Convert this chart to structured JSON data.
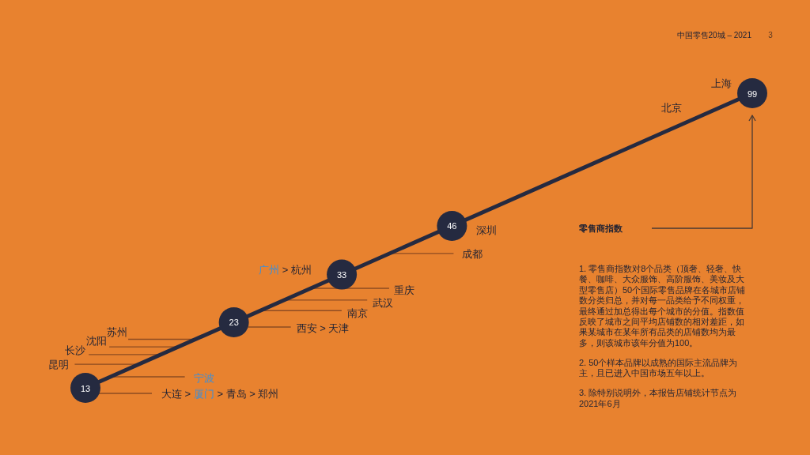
{
  "chart_data": {
    "type": "other",
    "title": "中国零售20城 – 2021",
    "subtitle": "零售商指数",
    "categories": [
      "大连 > 厦门 > 青岛 > 郑州",
      "宁波",
      "昆明",
      "长沙",
      "沈阳",
      "苏州",
      "西安 > 天津",
      "南京",
      "武汉",
      "重庆",
      "广州 > 杭州",
      "成都",
      "深圳",
      "北京",
      "上海"
    ],
    "values": [
      13,
      null,
      null,
      null,
      null,
      null,
      23,
      null,
      null,
      null,
      33,
      null,
      46,
      null,
      99
    ],
    "color": "#252a40",
    "data_labels": true,
    "annotations": [
      "1. 零售商指数对8个品类（顶奢、轻奢、快餐、咖啡、大众服饰、高阶服饰、美妆及大型零售店）50个国际零售品牌在各城市店铺数分类归总，并对每一品类给予不同权重，最终通过加总得出每个城市的分值。指数值反映了城市之间平均店铺数的相对差距，如果某城市在某年所有品类的店铺数均为最多，则该城市该年分值为100。",
      "2. 50个样本品牌以成熟的国际主流品牌为主，且已进入中国市场五年以上。",
      "3. 除特别说明外，本报告店铺统计节点为2021年6月",
      "3"
    ]
  }
}
